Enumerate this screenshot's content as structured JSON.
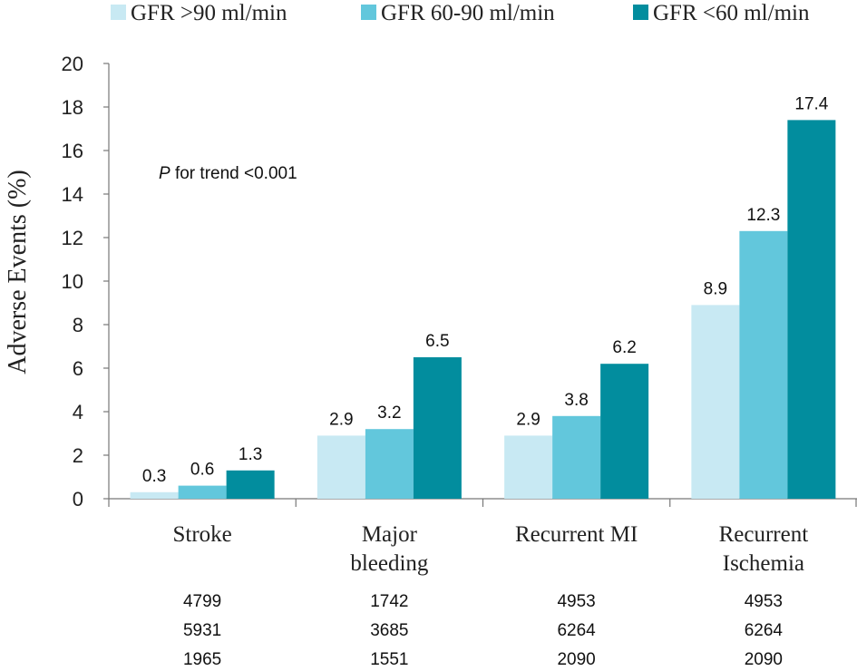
{
  "chart_data": {
    "type": "bar",
    "categories": [
      "Stroke",
      "Major\nbleeding",
      "Recurrent MI",
      "Recurrent\nIschemia"
    ],
    "series": [
      {
        "name": "GFR >90 ml/min",
        "color": "#c8e9f3",
        "values": [
          0.3,
          2.9,
          2.9,
          8.9
        ]
      },
      {
        "name": "GFR 60-90 ml/min",
        "color": "#62c7dc",
        "values": [
          0.6,
          3.2,
          3.8,
          12.3
        ]
      },
      {
        "name": "GFR <60 ml/min",
        "color": "#028d9e",
        "values": [
          1.3,
          6.5,
          6.2,
          17.4
        ]
      }
    ],
    "ylabel": "Adverse Events (%)",
    "ylim": [
      0,
      20
    ],
    "yticks": [
      0,
      2,
      4,
      6,
      8,
      10,
      12,
      14,
      16,
      18,
      20
    ],
    "annotation": {
      "italic": "P",
      "rest": " for trend <0.001"
    },
    "counts": [
      [
        "4799",
        "1742",
        "4953",
        "4953"
      ],
      [
        "5931",
        "3685",
        "6264",
        "6264"
      ],
      [
        "1965",
        "1551",
        "2090",
        "2090"
      ]
    ],
    "legend_position": "top",
    "grid": false
  }
}
